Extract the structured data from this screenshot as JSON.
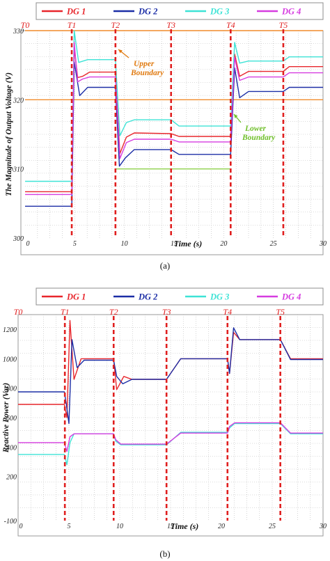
{
  "chart_data": [
    {
      "type": "line",
      "panel_label": "(a)",
      "xlabel": "Time (s)",
      "ylabel": "The Magnitude of Output Voltage (V)",
      "xlim": [
        0,
        30
      ],
      "ylim": [
        300,
        330
      ],
      "x_ticks": [
        0,
        5,
        10,
        15,
        20,
        25,
        30
      ],
      "y_ticks": [
        300,
        310,
        320,
        330
      ],
      "grid": true,
      "legend_position": "top",
      "events": [
        {
          "label": "T0",
          "x": 0
        },
        {
          "label": "T1",
          "x": 4.7
        },
        {
          "label": "T2",
          "x": 9.1
        },
        {
          "label": "T3",
          "x": 14.7
        },
        {
          "label": "T4",
          "x": 20.7
        },
        {
          "label": "T5",
          "x": 26
        }
      ],
      "reference_lines": [
        {
          "y": 330,
          "color": "#f08c2c",
          "x_range": [
            0,
            30
          ]
        },
        {
          "y": 320,
          "color": "#f08c2c",
          "x_range": [
            0,
            30
          ]
        },
        {
          "y": 310,
          "color": "#8ed04a",
          "x_range": [
            9.1,
            20.7
          ]
        }
      ],
      "annotations": [
        {
          "lines": [
            "Upper",
            "Boundary"
          ],
          "color": "#e07a10"
        },
        {
          "lines": [
            "Lower",
            "Boundary"
          ],
          "color": "#6fbf2a"
        }
      ],
      "series": [
        {
          "name": "DG 1",
          "color": "#e8262c",
          "points": [
            [
              0,
              306.7
            ],
            [
              4.7,
              306.7
            ],
            [
              4.95,
              327.5
            ],
            [
              5.3,
              323.2
            ],
            [
              5.8,
              323.4
            ],
            [
              6.5,
              324
            ],
            [
              9.1,
              324
            ],
            [
              9.55,
              312.2
            ],
            [
              10.2,
              314.6
            ],
            [
              11,
              315.2
            ],
            [
              14.7,
              315.1
            ],
            [
              15.5,
              314.7
            ],
            [
              20.7,
              314.7
            ],
            [
              21.1,
              326.6
            ],
            [
              21.6,
              323.4
            ],
            [
              22.5,
              324.1
            ],
            [
              26,
              324.1
            ],
            [
              26.6,
              324.8
            ],
            [
              30,
              324.8
            ]
          ]
        },
        {
          "name": "DG 2",
          "color": "#1c2ea6",
          "points": [
            [
              0,
              304.6
            ],
            [
              4.7,
              304.6
            ],
            [
              4.95,
              325.5
            ],
            [
              5.5,
              320.6
            ],
            [
              6.3,
              321.8
            ],
            [
              9.1,
              321.8
            ],
            [
              9.5,
              310.4
            ],
            [
              10.1,
              311.6
            ],
            [
              11,
              312.8
            ],
            [
              14.7,
              312.8
            ],
            [
              15.5,
              312.1
            ],
            [
              20.7,
              312.1
            ],
            [
              21.1,
              324.6
            ],
            [
              21.6,
              320.3
            ],
            [
              22.5,
              321.2
            ],
            [
              26,
              321.2
            ],
            [
              26.6,
              321.8
            ],
            [
              30,
              321.8
            ]
          ]
        },
        {
          "name": "DG 3",
          "color": "#3ee3d6",
          "points": [
            [
              0,
              308.2
            ],
            [
              4.7,
              308.2
            ],
            [
              4.95,
              330
            ],
            [
              5.4,
              325.4
            ],
            [
              6.3,
              325.8
            ],
            [
              9.1,
              325.8
            ],
            [
              9.55,
              314.8
            ],
            [
              10.2,
              316.7
            ],
            [
              11,
              317.1
            ],
            [
              14.7,
              317.1
            ],
            [
              15.5,
              316.2
            ],
            [
              20.7,
              316.2
            ],
            [
              21.1,
              328.3
            ],
            [
              21.6,
              325.3
            ],
            [
              22.5,
              325.6
            ],
            [
              26,
              325.6
            ],
            [
              26.6,
              326.2
            ],
            [
              30,
              326.2
            ]
          ]
        },
        {
          "name": "DG 4",
          "color": "#d63ce0",
          "points": [
            [
              0,
              306.3
            ],
            [
              4.7,
              306.3
            ],
            [
              4.95,
              328.3
            ],
            [
              5.3,
              322.6
            ],
            [
              5.8,
              323
            ],
            [
              6.5,
              323.3
            ],
            [
              9.1,
              323.3
            ],
            [
              9.55,
              311.5
            ],
            [
              10.2,
              313.8
            ],
            [
              11,
              314.3
            ],
            [
              14.7,
              314.3
            ],
            [
              15.5,
              313.9
            ],
            [
              20.7,
              313.9
            ],
            [
              21.1,
              326.1
            ],
            [
              21.6,
              322.8
            ],
            [
              22.5,
              323.3
            ],
            [
              26,
              323.3
            ],
            [
              26.6,
              323.9
            ],
            [
              30,
              323.9
            ]
          ]
        }
      ]
    },
    {
      "type": "line",
      "panel_label": "(b)",
      "xlabel": "Time (s)",
      "ylabel": "Reactive Power (Var)",
      "xlim": [
        0,
        30
      ],
      "ylim": [
        -100,
        1300
      ],
      "x_ticks": [
        0,
        5,
        10,
        15,
        20,
        25,
        30
      ],
      "y_ticks": [
        -100,
        200,
        400,
        600,
        800,
        1000,
        1200
      ],
      "grid": true,
      "legend_position": "top",
      "events": [
        {
          "label": "T0",
          "x": 0
        },
        {
          "label": "T1",
          "x": 4.6
        },
        {
          "label": "T2",
          "x": 9.4
        },
        {
          "label": "T3",
          "x": 14.6
        },
        {
          "label": "T4",
          "x": 20.6
        },
        {
          "label": "T5",
          "x": 25.8
        }
      ],
      "series": [
        {
          "name": "DG 1",
          "color": "#e8262c",
          "points": [
            [
              0,
              690
            ],
            [
              4.55,
              690
            ],
            [
              4.8,
              600
            ],
            [
              5.1,
              1260
            ],
            [
              5.5,
              860
            ],
            [
              6.2,
              1000
            ],
            [
              9.4,
              1000
            ],
            [
              9.7,
              790
            ],
            [
              10.4,
              880
            ],
            [
              11.2,
              860
            ],
            [
              14.6,
              860
            ],
            [
              16,
              1000
            ],
            [
              20.6,
              1000
            ],
            [
              20.8,
              900
            ],
            [
              21.2,
              1180
            ],
            [
              21.8,
              1130
            ],
            [
              25.8,
              1130
            ],
            [
              26.8,
              1000
            ],
            [
              30,
              1000
            ]
          ]
        },
        {
          "name": "DG 2",
          "color": "#1c2ea6",
          "points": [
            [
              0,
              775
            ],
            [
              4.55,
              775
            ],
            [
              4.75,
              690
            ],
            [
              5.0,
              560
            ],
            [
              5.3,
              1130
            ],
            [
              5.8,
              940
            ],
            [
              6.5,
              990
            ],
            [
              9.4,
              990
            ],
            [
              9.7,
              880
            ],
            [
              10.3,
              830
            ],
            [
              11.2,
              860
            ],
            [
              14.6,
              860
            ],
            [
              16,
              1000
            ],
            [
              20.6,
              1000
            ],
            [
              20.8,
              900
            ],
            [
              21.2,
              1210
            ],
            [
              21.8,
              1130
            ],
            [
              25.8,
              1130
            ],
            [
              26.8,
              995
            ],
            [
              30,
              995
            ]
          ]
        },
        {
          "name": "DG 3",
          "color": "#3ee3d6",
          "points": [
            [
              0,
              350
            ],
            [
              4.55,
              350
            ],
            [
              4.8,
              280
            ],
            [
              5.1,
              430
            ],
            [
              5.5,
              490
            ],
            [
              9.4,
              490
            ],
            [
              9.6,
              440
            ],
            [
              10.1,
              415
            ],
            [
              14.6,
              415
            ],
            [
              16,
              500
            ],
            [
              20.6,
              500
            ],
            [
              20.8,
              530
            ],
            [
              21.3,
              560
            ],
            [
              25.8,
              560
            ],
            [
              26.8,
              490
            ],
            [
              30,
              490
            ]
          ]
        },
        {
          "name": "DG 4",
          "color": "#d63ce0",
          "points": [
            [
              0,
              430
            ],
            [
              4.55,
              430
            ],
            [
              4.8,
              370
            ],
            [
              5.1,
              470
            ],
            [
              5.5,
              490
            ],
            [
              9.4,
              490
            ],
            [
              9.6,
              450
            ],
            [
              10.1,
              420
            ],
            [
              14.6,
              420
            ],
            [
              16,
              495
            ],
            [
              20.6,
              495
            ],
            [
              20.8,
              540
            ],
            [
              21.3,
              565
            ],
            [
              25.8,
              565
            ],
            [
              26.8,
              495
            ],
            [
              30,
              495
            ]
          ]
        }
      ]
    }
  ]
}
